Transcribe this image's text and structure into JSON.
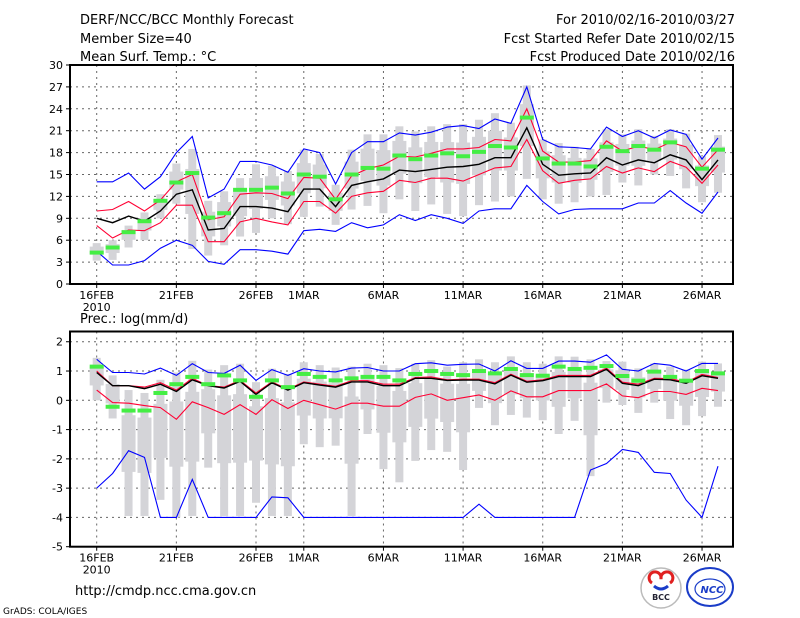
{
  "header": {
    "title": "DERF/NCC/BCC Monthly Forecast",
    "member_size": "Member Size=40",
    "var_top": "Mean Surf. Temp.: °C",
    "period": "For 2010/02/16-2010/03/27",
    "refer_date": "Fcst Started Refer Date 2010/02/15",
    "produced_date": "Fcst Produced Date 2010/02/16"
  },
  "footer": {
    "url": "http://cmdp.ncc.cma.gov.cn",
    "grads": "GrADS: COLA/IGES",
    "logo_bcc": "BCC",
    "logo_ncc": "NCC"
  },
  "colors": {
    "max_min": "#0000ff",
    "spread": "#ff0033",
    "mean": "#000000",
    "obs": "#44ee44",
    "box": "#d4d4d8"
  },
  "chart_data": [
    {
      "type": "line",
      "title": "Mean Surf. Temp.: °C",
      "ylim": [
        0,
        30
      ],
      "yticks": [
        0,
        3,
        6,
        9,
        12,
        15,
        18,
        21,
        24,
        27,
        30
      ],
      "xtick_days": [
        0,
        5,
        10,
        13,
        18,
        23,
        28,
        33,
        38
      ],
      "xtick_labels": [
        "16FEB",
        "21FEB",
        "26FEB",
        "1MAR",
        "6MAR",
        "11MAR",
        "16MAR",
        "21MAR",
        "26MAR"
      ],
      "year_label": "2010",
      "n_days": 40,
      "grid": true,
      "series": [
        {
          "name": "max",
          "color": "#0000ff",
          "values": [
            14,
            14,
            15.2,
            13,
            14.7,
            18,
            20.2,
            11.8,
            13,
            16.8,
            16.8,
            16.3,
            15.3,
            18.5,
            18,
            13.7,
            18,
            19.5,
            19.5,
            20.7,
            20.4,
            20.8,
            21.5,
            21.7,
            21.3,
            22.6,
            22,
            27,
            19.8,
            18.8,
            18.7,
            18.5,
            21.5,
            20.2,
            21,
            20,
            21.1,
            20.5,
            17.1,
            20
          ]
        },
        {
          "name": "upper",
          "color": "#ff0033",
          "values": [
            10,
            10.2,
            11.3,
            10,
            11.5,
            14,
            15,
            8.8,
            9.2,
            12.3,
            12.5,
            12.4,
            11.7,
            14.6,
            14.5,
            11.6,
            14.8,
            15.8,
            16.3,
            17.5,
            17.4,
            17.9,
            18.5,
            18.5,
            18.7,
            19.8,
            19.6,
            24,
            18.2,
            16.7,
            16.7,
            16.9,
            19.6,
            18.2,
            18.9,
            18.4,
            19.4,
            18.8,
            16,
            18.4
          ]
        },
        {
          "name": "mean",
          "color": "#000000",
          "values": [
            9,
            8.4,
            9.3,
            8.6,
            10,
            12.3,
            12.9,
            7.4,
            7.6,
            10.6,
            10.6,
            10.4,
            9.9,
            13,
            13,
            10.6,
            13.5,
            14,
            14.4,
            15.6,
            15.4,
            15.7,
            16,
            16.1,
            16.4,
            17.3,
            17.3,
            21.4,
            16.4,
            14.9,
            15.1,
            15.2,
            17.3,
            16.3,
            17,
            16.6,
            17.7,
            17,
            14.3,
            17
          ]
        },
        {
          "name": "lower",
          "color": "#ff0033",
          "values": [
            8,
            6.3,
            7.4,
            7.3,
            8.4,
            10.8,
            10.8,
            5.8,
            5.8,
            8.5,
            9,
            8.5,
            8.1,
            11.3,
            11.3,
            9.7,
            12,
            12.5,
            12.7,
            14.2,
            13.9,
            14.5,
            14.5,
            14.1,
            15,
            15.9,
            16.1,
            19.8,
            15.5,
            13.8,
            14.2,
            14.4,
            16.1,
            15.2,
            15.9,
            15.4,
            16.8,
            16,
            13.8,
            16.3
          ]
        },
        {
          "name": "min",
          "color": "#0000ff",
          "values": [
            4.5,
            2.6,
            2.6,
            3.2,
            4.9,
            6,
            5.3,
            3.1,
            2.7,
            4.7,
            4.7,
            4.5,
            4.1,
            7.3,
            7.5,
            7.2,
            8.4,
            7.7,
            8.1,
            9.5,
            8.7,
            9.5,
            9,
            8.3,
            10,
            10.3,
            10.3,
            13.5,
            11.3,
            9.6,
            10.2,
            10.3,
            10.3,
            10.3,
            11.1,
            11.1,
            12.8,
            11.1,
            9.7,
            12.6
          ]
        }
      ],
      "observed": [
        4.3,
        5,
        7.1,
        8.6,
        11.4,
        13.9,
        15.2,
        9.1,
        9.7,
        12.9,
        12.9,
        13.2,
        12.4,
        15,
        14.7,
        11.6,
        15,
        15.9,
        15.8,
        17.6,
        17.1,
        17.6,
        17.9,
        17.5,
        18.1,
        18.9,
        18.7,
        22.8,
        17.2,
        16.5,
        16.5,
        16.1,
        18.8,
        18.2,
        18.9,
        18.4,
        19.4,
        null,
        15.8,
        18.4
      ],
      "box_low": [
        3.2,
        3.3,
        5,
        6,
        9,
        11,
        4.8,
        3.9,
        5.3,
        6.5,
        7,
        9,
        8.2,
        9.2,
        10.6,
        8.1,
        10.2,
        10.7,
        9.7,
        11.6,
        10,
        10.9,
        9.6,
        9.3,
        10.8,
        11.3,
        12,
        14.4,
        11.6,
        11,
        11.2,
        12,
        12.2,
        13.9,
        13.5,
        15,
        14.8,
        13.1,
        11.2,
        12.5
      ],
      "box_high": [
        5.6,
        6,
        8,
        9.8,
        12.3,
        16.5,
        18.5,
        11.4,
        12.7,
        14.5,
        16.4,
        16.2,
        15.5,
        18.4,
        17.8,
        13.6,
        18.4,
        20.5,
        20.5,
        21.6,
        20.9,
        21.6,
        21.9,
        21.9,
        22.5,
        23.4,
        22.1,
        27.2,
        19.8,
        19.3,
        18.8,
        18.5,
        21.2,
        20.5,
        21.2,
        20.3,
        21.2,
        20.6,
        17.5,
        20.4
      ]
    },
    {
      "type": "line",
      "title": "Prec.: log(mm/d)",
      "ylim": [
        -5,
        2.35
      ],
      "yticks": [
        -5,
        -4,
        -3,
        -2,
        -1,
        0,
        1,
        2
      ],
      "xtick_days": [
        0,
        5,
        10,
        13,
        18,
        23,
        28,
        33,
        38
      ],
      "xtick_labels": [
        "16FEB",
        "21FEB",
        "26FEB",
        "1MAR",
        "6MAR",
        "11MAR",
        "16MAR",
        "21MAR",
        "26MAR"
      ],
      "year_label": "2010",
      "n_days": 40,
      "grid": true,
      "series": [
        {
          "name": "max",
          "color": "#0000ff",
          "values": [
            1.4,
            0.95,
            0.95,
            0.9,
            1.1,
            0.85,
            1.25,
            0.95,
            0.92,
            1.2,
            0.68,
            1.05,
            0.85,
            1.08,
            1,
            0.97,
            1.1,
            1.12,
            1,
            1,
            1.25,
            1.28,
            1.2,
            1.23,
            1.24,
            1,
            1.35,
            1.09,
            1.09,
            1.34,
            1.34,
            1.3,
            1.55,
            1.06,
            1,
            1.26,
            1.2,
            1,
            1.26,
            1.26
          ]
        },
        {
          "name": "upper",
          "color": "#ff0033",
          "values": [
            1,
            0.5,
            0.5,
            0.45,
            0.6,
            0.35,
            0.75,
            0.5,
            0.45,
            0.68,
            0.25,
            0.63,
            0.38,
            0.63,
            0.55,
            0.48,
            0.67,
            0.67,
            0.55,
            0.55,
            0.78,
            0.8,
            0.7,
            0.72,
            0.72,
            0.6,
            0.89,
            0.65,
            0.7,
            0.85,
            0.85,
            0.85,
            1.1,
            0.62,
            0.55,
            0.75,
            0.74,
            0.62,
            0.88,
            0.78
          ]
        },
        {
          "name": "mean",
          "color": "#000000",
          "values": [
            0.95,
            0.5,
            0.5,
            0.4,
            0.55,
            0.3,
            0.7,
            0.5,
            0.42,
            0.65,
            0.2,
            0.6,
            0.35,
            0.6,
            0.52,
            0.45,
            0.63,
            0.63,
            0.5,
            0.5,
            0.75,
            0.75,
            0.68,
            0.69,
            0.69,
            0.56,
            0.86,
            0.62,
            0.67,
            0.81,
            0.81,
            0.81,
            1.06,
            0.58,
            0.5,
            0.72,
            0.7,
            0.58,
            0.84,
            0.75
          ]
        },
        {
          "name": "lower",
          "color": "#ff0033",
          "values": [
            0.35,
            -0.08,
            -0.1,
            -0.18,
            -0.25,
            -0.65,
            -0.05,
            -0.25,
            -0.48,
            -0.15,
            -0.48,
            0.02,
            -0.28,
            0,
            -0.15,
            -0.3,
            -0.1,
            -0.1,
            -0.2,
            -0.2,
            0.1,
            0.22,
            0,
            0.09,
            0.18,
            0,
            0.32,
            0.12,
            0.12,
            0.33,
            0.33,
            0.33,
            0.56,
            0.15,
            0.09,
            0.3,
            0.3,
            0.2,
            0.41,
            0.33
          ]
        },
        {
          "name": "min",
          "color": "#0000ff",
          "values": [
            -3,
            -2.5,
            -1.72,
            -1.95,
            -4,
            -4,
            -2.7,
            -4,
            -4,
            -4,
            -4,
            -3.3,
            -3.33,
            -4,
            -4,
            -4,
            -4,
            -4,
            -4,
            -4,
            -4,
            -4,
            -4,
            -4,
            -3.55,
            -4,
            -4,
            -4,
            -4,
            -4,
            -4,
            -2.38,
            -2.16,
            -1.68,
            -1.78,
            -2.46,
            -2.5,
            -3.41,
            -4,
            -2.25
          ]
        }
      ],
      "observed": [
        1.15,
        -0.22,
        -0.35,
        -0.35,
        0.25,
        0.55,
        0.8,
        0.55,
        0.85,
        0.68,
        0.12,
        0.68,
        0.45,
        0.9,
        0.8,
        0.68,
        0.75,
        0.8,
        0.8,
        0.68,
        0.9,
        1,
        0.9,
        0.86,
        1,
        0.92,
        1.07,
        0.86,
        0.84,
        1.15,
        1.07,
        1.11,
        1.17,
        0.83,
        0.67,
        0.98,
        0.8,
        0.67,
        1,
        0.92
      ],
      "box_low": [
        0,
        -0.62,
        -3.95,
        -3.95,
        -3.4,
        -4,
        -3.95,
        -2.3,
        -3.95,
        -3.95,
        -3.5,
        -3.95,
        -3.95,
        -1.5,
        -1.6,
        -1.55,
        -3.95,
        -1.15,
        -2.35,
        -2.8,
        -2.07,
        -1.7,
        -1.76,
        -2.38,
        -0.26,
        -0.85,
        -0.5,
        -0.59,
        -0.68,
        -1.15,
        -0.7,
        -2.59,
        -0.08,
        -0.16,
        -0.43,
        -0.08,
        -0.64,
        -0.85,
        -0.54,
        -0.22
      ],
      "box_high": [
        1.45,
        0.85,
        0.35,
        0.25,
        0.7,
        0.95,
        1.35,
        1.05,
        1.2,
        1.25,
        0.62,
        1.08,
        0.9,
        1.3,
        1.2,
        1.12,
        1.15,
        1.25,
        1.2,
        1.1,
        1.25,
        1.37,
        1.15,
        1.3,
        1.4,
        1.3,
        1.5,
        1.3,
        1.25,
        1.5,
        1.49,
        1.4,
        1.34,
        1.32,
        1.09,
        1.26,
        1.15,
        1.05,
        1.32,
        1.26
      ]
    }
  ]
}
